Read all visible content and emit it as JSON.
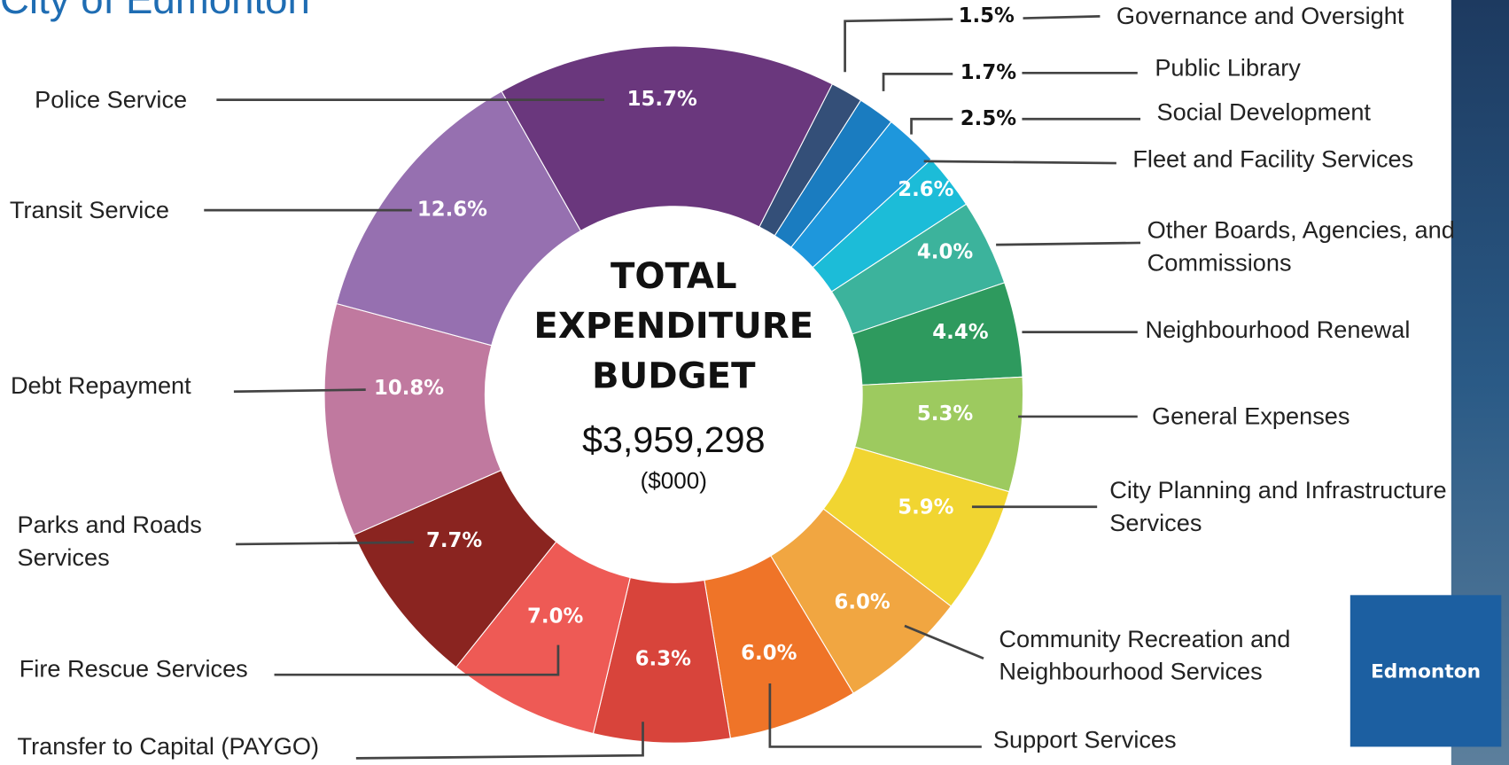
{
  "chart_data": {
    "type": "pie",
    "donut": true,
    "title": "City of Edmonton",
    "center_title": "TOTAL EXPENDITURE BUDGET",
    "center_value": "$3,959,298",
    "center_unit": "($000)",
    "logo": "Edmonton",
    "categories": [
      "Governance and Oversight",
      "Public Library",
      "Social Development",
      "Fleet and Facility Services",
      "Other Boards, Agencies, and Commissions",
      "Neighbourhood Renewal",
      "General Expenses",
      "City Planning and Infrastructure Services",
      "Community Recreation and Neighbourhood Services",
      "Support Services",
      "Transfer to Capital (PAYGO)",
      "Fire Rescue Services",
      "Parks and Roads Services",
      "Debt Repayment",
      "Transit Service",
      "Police Service"
    ],
    "values": [
      1.5,
      1.7,
      2.5,
      2.6,
      4.0,
      4.4,
      5.3,
      5.9,
      6.0,
      6.0,
      6.3,
      7.0,
      7.7,
      10.8,
      12.6,
      15.7
    ],
    "value_labels": [
      "1.5%",
      "1.7%",
      "2.5%",
      "2.6%",
      "4.0%",
      "4.4%",
      "5.3%",
      "5.9%",
      "6.0%",
      "6.0%",
      "6.3%",
      "7.0%",
      "7.7%",
      "10.8%",
      "12.6%",
      "15.7%"
    ],
    "colors": [
      "#344f78",
      "#1a7cc0",
      "#1e97dc",
      "#1cbcd8",
      "#3cb39c",
      "#2e9a5e",
      "#9dca5f",
      "#f1d531",
      "#f1a641",
      "#ef7428",
      "#d8443b",
      "#ee5a55",
      "#8a2420",
      "#c0799f",
      "#9670b0",
      "#6a377d"
    ]
  }
}
